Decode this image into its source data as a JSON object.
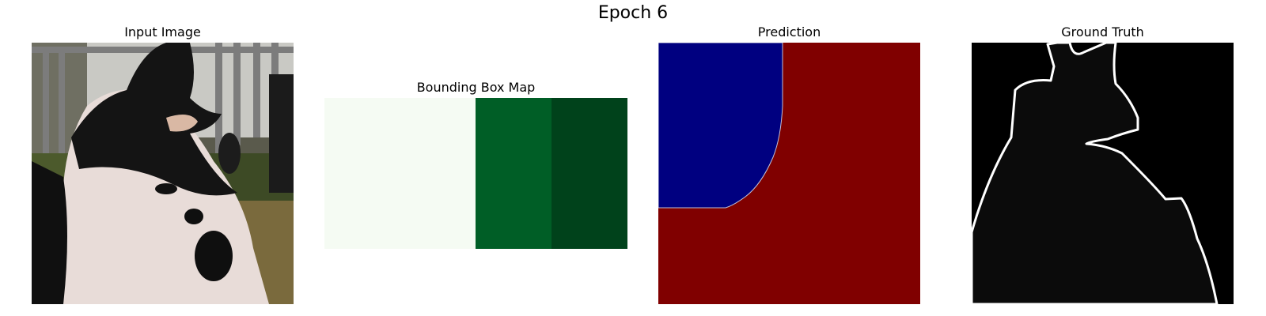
{
  "figure": {
    "title": "Epoch 6"
  },
  "panels": [
    {
      "title": "Input Image"
    },
    {
      "title": "Bounding Box Map"
    },
    {
      "title": "Prediction"
    },
    {
      "title": "Ground Truth"
    }
  ],
  "colors": {
    "bbox_light": "#f5fbf3",
    "bbox_mid": "#005e26",
    "bbox_dark": "#00421b",
    "pred_background": "#800000",
    "pred_object": "#000080",
    "gt_background": "#000000",
    "gt_object": "#0b0b0b",
    "gt_outline": "#ffffff"
  }
}
